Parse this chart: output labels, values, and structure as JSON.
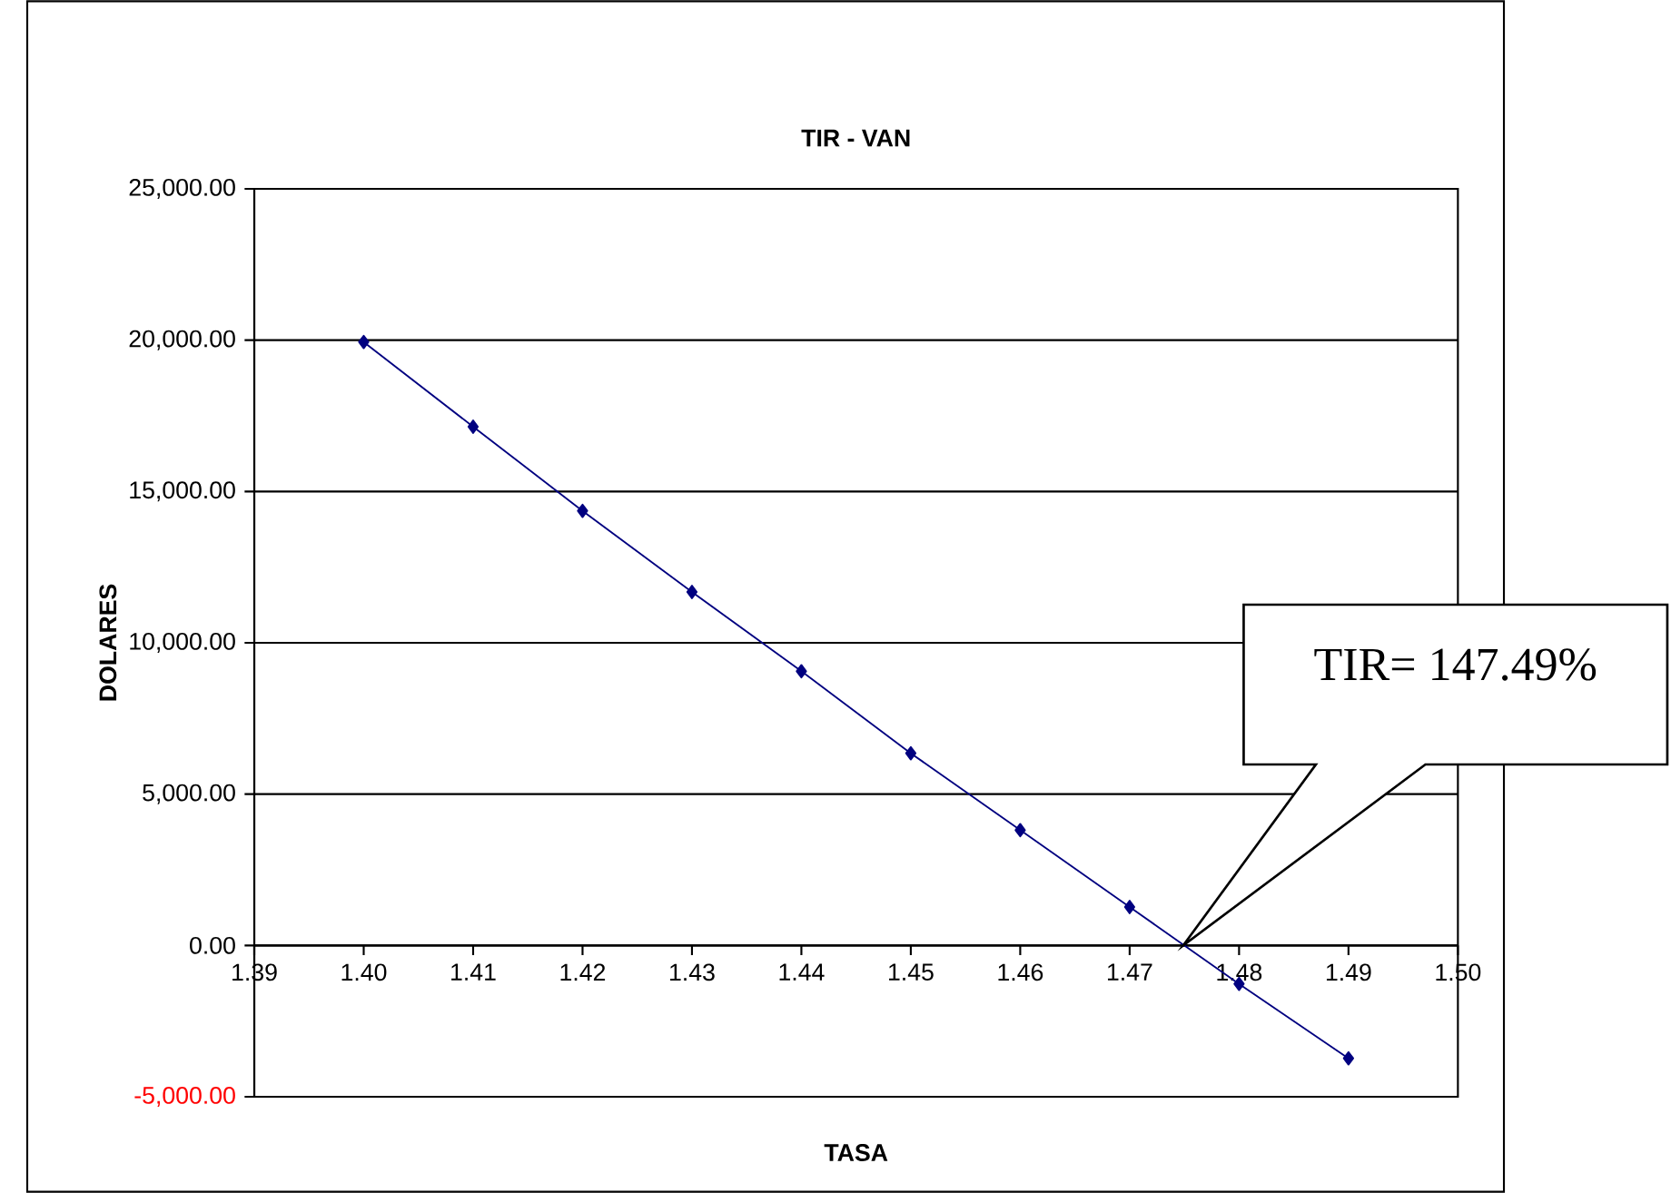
{
  "chart_data": {
    "type": "line",
    "title": "TIR - VAN",
    "xlabel": "TASA",
    "ylabel": "DOLARES",
    "x": [
      1.4,
      1.41,
      1.42,
      1.43,
      1.44,
      1.45,
      1.46,
      1.47,
      1.48,
      1.49
    ],
    "series": [
      {
        "color": "#000080",
        "values": [
          19940,
          17140,
          14360,
          11680,
          9060,
          6350,
          3810,
          1270,
          -1270,
          -3730
        ]
      }
    ],
    "marker": "diamond",
    "grid": "y",
    "xlim": [
      1.39,
      1.5
    ],
    "xticks": [
      {
        "value": 1.39,
        "label": "1.39"
      },
      {
        "value": 1.4,
        "label": "1.40"
      },
      {
        "value": 1.41,
        "label": "1.41"
      },
      {
        "value": 1.42,
        "label": "1.42"
      },
      {
        "value": 1.43,
        "label": "1.43"
      },
      {
        "value": 1.44,
        "label": "1.44"
      },
      {
        "value": 1.45,
        "label": "1.45"
      },
      {
        "value": 1.46,
        "label": "1.46"
      },
      {
        "value": 1.47,
        "label": "1.47"
      },
      {
        "value": 1.48,
        "label": "1.48"
      },
      {
        "value": 1.49,
        "label": "1.49"
      },
      {
        "value": 1.5,
        "label": "1.50"
      }
    ],
    "ylim": [
      -5000,
      25000
    ],
    "yticks": [
      {
        "value": -5000,
        "label": "-5,000.00"
      },
      {
        "value": 0,
        "label": "0.00"
      },
      {
        "value": 5000,
        "label": "5,000.00"
      },
      {
        "value": 10000,
        "label": "10,000.00"
      },
      {
        "value": 15000,
        "label": "15,000.00"
      },
      {
        "value": 20000,
        "label": "20,000.00"
      },
      {
        "value": 25000,
        "label": "25,000.00"
      }
    ],
    "annotations": [
      "TIR= 147.49%"
    ]
  }
}
